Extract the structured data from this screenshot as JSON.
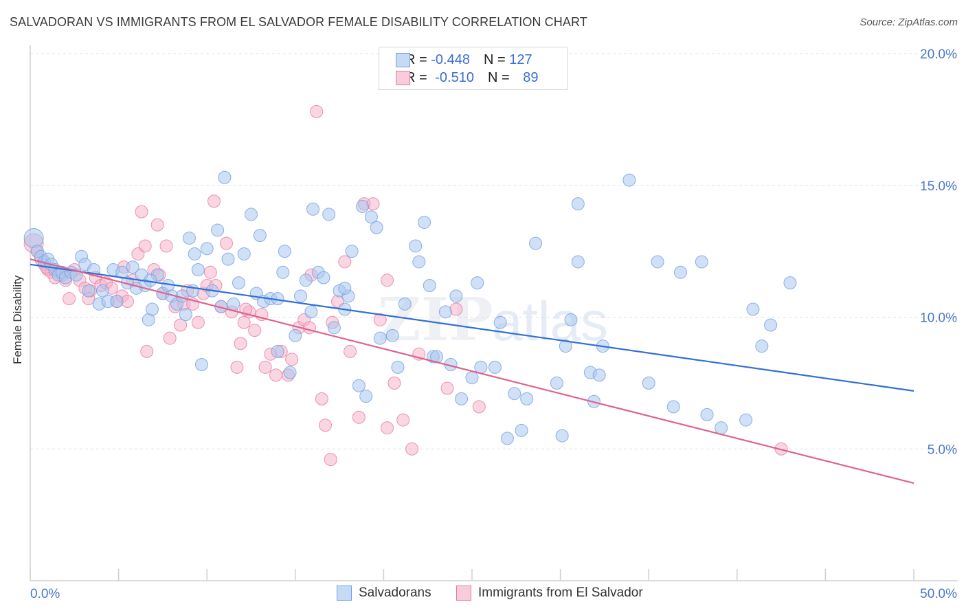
{
  "header": {
    "title": "SALVADORAN VS IMMIGRANTS FROM EL SALVADOR FEMALE DISABILITY CORRELATION CHART",
    "source": "Source: ZipAtlas.com"
  },
  "watermark": {
    "zip": "ZIP",
    "atlas": "atlas"
  },
  "legend_top": {
    "rows": [
      {
        "r_label": "R = ",
        "r_value": "-0.448",
        "n_label": "N = ",
        "n_value": "127",
        "color": "#a9c6f0"
      },
      {
        "r_label": "R = ",
        "r_value": "-0.510",
        "n_label": "N = ",
        "n_value": "89",
        "color": "#f4b4c8"
      }
    ]
  },
  "legend_bottom": {
    "items": [
      {
        "label": "Salvadorans",
        "color": "#a9c6f0"
      },
      {
        "label": "Immigrants from El Salvador",
        "color": "#f4b4c8"
      }
    ]
  },
  "chart_data": {
    "type": "scatter",
    "title": "SALVADORAN VS IMMIGRANTS FROM EL SALVADOR FEMALE DISABILITY CORRELATION CHART",
    "xlabel": "",
    "ylabel": "Female Disability",
    "xlim": [
      0,
      50
    ],
    "ylim": [
      0,
      20
    ],
    "x_tick_labels": [
      "0.0%",
      "50.0%"
    ],
    "y_ticks": [
      5,
      10,
      15,
      20
    ],
    "y_tick_labels": [
      "5.0%",
      "10.0%",
      "15.0%",
      "20.0%"
    ],
    "grid": "horizontal dashed",
    "legend_position": "top-center",
    "series": [
      {
        "name": "Salvadorans",
        "color": "#6f9fe0",
        "fill": "#a9c6f0",
        "trend": {
          "x": [
            0,
            50
          ],
          "y": [
            12.0,
            7.2
          ]
        },
        "points": [
          [
            0.2,
            13.0
          ],
          [
            0.4,
            12.5
          ],
          [
            0.6,
            12.3
          ],
          [
            0.8,
            12.1
          ],
          [
            1.0,
            12.2
          ],
          [
            1.2,
            12.0
          ],
          [
            1.4,
            11.8
          ],
          [
            1.6,
            11.6
          ],
          [
            1.8,
            11.7
          ],
          [
            2.0,
            11.5
          ],
          [
            2.3,
            11.7
          ],
          [
            2.6,
            11.6
          ],
          [
            2.9,
            12.3
          ],
          [
            3.1,
            12.0
          ],
          [
            3.3,
            11.0
          ],
          [
            3.6,
            11.8
          ],
          [
            3.9,
            10.5
          ],
          [
            4.1,
            11.0
          ],
          [
            4.4,
            10.6
          ],
          [
            4.7,
            11.8
          ],
          [
            4.9,
            10.6
          ],
          [
            5.2,
            11.7
          ],
          [
            5.5,
            11.3
          ],
          [
            5.8,
            11.9
          ],
          [
            6.0,
            11.1
          ],
          [
            6.3,
            11.6
          ],
          [
            6.5,
            11.2
          ],
          [
            6.7,
            9.9
          ],
          [
            6.9,
            10.3
          ],
          [
            7.2,
            11.6
          ],
          [
            7.5,
            10.9
          ],
          [
            7.8,
            11.2
          ],
          [
            8.0,
            10.8
          ],
          [
            8.3,
            10.5
          ],
          [
            8.6,
            10.8
          ],
          [
            8.8,
            10.1
          ],
          [
            9.0,
            13.0
          ],
          [
            9.3,
            12.4
          ],
          [
            9.5,
            11.8
          ],
          [
            9.7,
            8.2
          ],
          [
            10.0,
            12.6
          ],
          [
            10.3,
            11.0
          ],
          [
            10.6,
            13.3
          ],
          [
            10.8,
            10.4
          ],
          [
            11.0,
            15.3
          ],
          [
            11.2,
            12.2
          ],
          [
            11.5,
            10.5
          ],
          [
            11.8,
            11.3
          ],
          [
            12.1,
            12.4
          ],
          [
            12.5,
            13.9
          ],
          [
            12.8,
            10.9
          ],
          [
            13.0,
            13.1
          ],
          [
            13.2,
            10.6
          ],
          [
            13.6,
            10.7
          ],
          [
            14.0,
            8.7
          ],
          [
            14.3,
            11.7
          ],
          [
            14.4,
            12.5
          ],
          [
            14.7,
            7.9
          ],
          [
            15.0,
            9.3
          ],
          [
            15.3,
            10.8
          ],
          [
            15.6,
            11.4
          ],
          [
            15.9,
            10.2
          ],
          [
            16.0,
            14.1
          ],
          [
            16.3,
            11.7
          ],
          [
            16.6,
            11.5
          ],
          [
            16.9,
            13.9
          ],
          [
            17.2,
            9.6
          ],
          [
            17.5,
            11.0
          ],
          [
            17.8,
            10.3
          ],
          [
            18.0,
            10.8
          ],
          [
            18.2,
            12.5
          ],
          [
            18.6,
            7.4
          ],
          [
            18.8,
            14.2
          ],
          [
            19.0,
            7.0
          ],
          [
            19.3,
            13.8
          ],
          [
            19.8,
            9.2
          ],
          [
            20.5,
            9.3
          ],
          [
            20.8,
            8.1
          ],
          [
            21.2,
            10.5
          ],
          [
            21.8,
            12.7
          ],
          [
            22.0,
            12.1
          ],
          [
            22.3,
            13.6
          ],
          [
            22.6,
            11.2
          ],
          [
            22.8,
            8.5
          ],
          [
            23.0,
            8.5
          ],
          [
            23.5,
            10.2
          ],
          [
            23.8,
            8.2
          ],
          [
            24.1,
            10.8
          ],
          [
            24.4,
            6.9
          ],
          [
            25.0,
            7.7
          ],
          [
            25.3,
            11.3
          ],
          [
            25.5,
            8.1
          ],
          [
            26.3,
            8.1
          ],
          [
            26.6,
            9.8
          ],
          [
            27.0,
            5.4
          ],
          [
            27.4,
            7.1
          ],
          [
            27.8,
            5.7
          ],
          [
            28.1,
            6.9
          ],
          [
            28.6,
            12.8
          ],
          [
            29.8,
            7.5
          ],
          [
            30.1,
            5.5
          ],
          [
            30.3,
            8.9
          ],
          [
            30.6,
            9.9
          ],
          [
            31.0,
            14.3
          ],
          [
            31.0,
            12.1
          ],
          [
            31.7,
            7.9
          ],
          [
            31.9,
            6.8
          ],
          [
            32.2,
            7.8
          ],
          [
            32.4,
            8.9
          ],
          [
            33.9,
            15.2
          ],
          [
            35.0,
            7.5
          ],
          [
            35.5,
            12.1
          ],
          [
            36.4,
            6.6
          ],
          [
            36.8,
            11.7
          ],
          [
            38.0,
            12.1
          ],
          [
            38.3,
            6.3
          ],
          [
            39.1,
            5.8
          ],
          [
            40.5,
            6.1
          ],
          [
            40.9,
            10.3
          ],
          [
            41.4,
            8.9
          ],
          [
            41.9,
            9.7
          ],
          [
            43.0,
            11.3
          ],
          [
            6.8,
            11.4
          ],
          [
            9.2,
            11.0
          ],
          [
            14.0,
            10.7
          ],
          [
            19.6,
            13.4
          ],
          [
            17.8,
            11.1
          ]
        ]
      },
      {
        "name": "Immigrants from El Salvador",
        "color": "#e8799c",
        "fill": "#f4b4c8",
        "trend": {
          "x": [
            0,
            50
          ],
          "y": [
            12.2,
            3.7
          ]
        },
        "points": [
          [
            0.2,
            12.8
          ],
          [
            0.4,
            12.5
          ],
          [
            0.6,
            12.2
          ],
          [
            0.8,
            12.0
          ],
          [
            1.0,
            11.8
          ],
          [
            1.2,
            11.7
          ],
          [
            1.4,
            11.5
          ],
          [
            1.7,
            11.7
          ],
          [
            2.0,
            11.4
          ],
          [
            2.2,
            10.7
          ],
          [
            2.5,
            11.8
          ],
          [
            2.8,
            11.4
          ],
          [
            3.1,
            11.1
          ],
          [
            3.4,
            11.0
          ],
          [
            3.7,
            11.5
          ],
          [
            4.0,
            11.2
          ],
          [
            4.3,
            11.3
          ],
          [
            4.6,
            11.1
          ],
          [
            4.9,
            10.6
          ],
          [
            5.2,
            10.8
          ],
          [
            5.5,
            10.6
          ],
          [
            5.8,
            11.4
          ],
          [
            6.1,
            12.4
          ],
          [
            6.3,
            14.0
          ],
          [
            6.5,
            12.7
          ],
          [
            6.6,
            8.7
          ],
          [
            7.0,
            11.8
          ],
          [
            7.2,
            13.5
          ],
          [
            7.5,
            10.9
          ],
          [
            7.7,
            12.7
          ],
          [
            7.9,
            9.2
          ],
          [
            8.2,
            10.4
          ],
          [
            8.5,
            9.7
          ],
          [
            8.7,
            10.5
          ],
          [
            8.9,
            11.0
          ],
          [
            9.2,
            10.5
          ],
          [
            9.5,
            9.8
          ],
          [
            9.8,
            10.9
          ],
          [
            10.0,
            11.2
          ],
          [
            10.4,
            14.4
          ],
          [
            10.5,
            11.2
          ],
          [
            10.8,
            10.4
          ],
          [
            11.1,
            12.8
          ],
          [
            11.4,
            10.2
          ],
          [
            11.7,
            8.1
          ],
          [
            11.9,
            9.0
          ],
          [
            12.1,
            9.8
          ],
          [
            12.4,
            10.2
          ],
          [
            12.7,
            9.5
          ],
          [
            13.1,
            10.1
          ],
          [
            13.3,
            8.1
          ],
          [
            13.6,
            8.6
          ],
          [
            13.9,
            7.8
          ],
          [
            14.2,
            8.7
          ],
          [
            14.6,
            7.8
          ],
          [
            14.8,
            8.4
          ],
          [
            15.2,
            9.6
          ],
          [
            15.5,
            9.9
          ],
          [
            15.8,
            9.6
          ],
          [
            16.2,
            17.8
          ],
          [
            16.5,
            6.9
          ],
          [
            16.7,
            5.9
          ],
          [
            17.0,
            4.6
          ],
          [
            17.4,
            10.6
          ],
          [
            17.8,
            12.1
          ],
          [
            18.1,
            8.7
          ],
          [
            18.6,
            6.2
          ],
          [
            18.9,
            14.3
          ],
          [
            19.4,
            14.3
          ],
          [
            19.8,
            9.9
          ],
          [
            20.2,
            5.8
          ],
          [
            20.6,
            7.5
          ],
          [
            21.1,
            6.1
          ],
          [
            21.6,
            5.0
          ],
          [
            22.0,
            8.6
          ],
          [
            23.6,
            7.3
          ],
          [
            24.1,
            10.3
          ],
          [
            25.4,
            6.6
          ],
          [
            42.5,
            5.0
          ],
          [
            0.9,
            11.9
          ],
          [
            1.8,
            11.6
          ],
          [
            3.3,
            10.7
          ],
          [
            5.3,
            11.9
          ],
          [
            7.3,
            11.6
          ],
          [
            10.2,
            11.7
          ],
          [
            12.2,
            10.3
          ],
          [
            15.9,
            11.6
          ],
          [
            17.1,
            9.8
          ],
          [
            20.2,
            11.4
          ]
        ]
      }
    ]
  }
}
